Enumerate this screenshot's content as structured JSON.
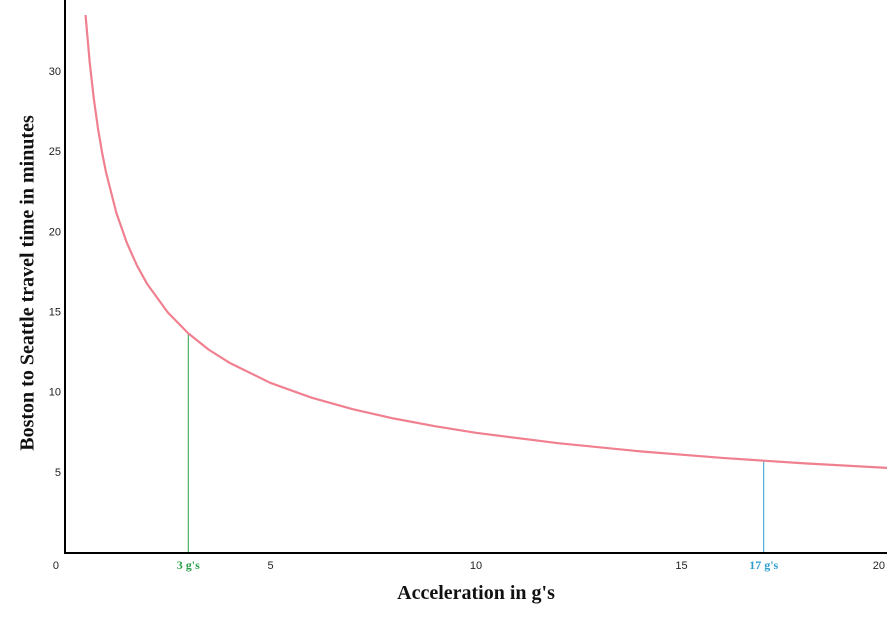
{
  "chart_data": {
    "type": "line",
    "x_label": "Acceleration in g's",
    "y_label": "Boston to Seattle travel time in minutes",
    "x": [
      0.5,
      0.6,
      0.7,
      0.8,
      0.9,
      1,
      1.25,
      1.5,
      1.75,
      2,
      2.5,
      3,
      3.5,
      4,
      5,
      6,
      7,
      8,
      9,
      10,
      12,
      14,
      16,
      17,
      18,
      20
    ],
    "series": [
      {
        "name": "Travel time",
        "color": "#f0808f",
        "values": [
          33.56,
          30.63,
          28.36,
          26.53,
          25.01,
          23.73,
          21.22,
          19.38,
          17.94,
          16.78,
          15.01,
          13.7,
          12.68,
          11.87,
          10.61,
          9.69,
          8.97,
          8.39,
          7.91,
          7.5,
          6.85,
          6.34,
          5.93,
          5.76,
          5.59,
          5.31
        ]
      }
    ],
    "xlim": [
      0,
      20
    ],
    "ylim": [
      0,
      34.5
    ],
    "xticks": [
      0,
      5,
      10,
      15,
      20
    ],
    "yticks": [
      5,
      10,
      15,
      20,
      25,
      30
    ],
    "annotations": [
      {
        "x": 3,
        "y": 13.7,
        "label": "3 g's",
        "color": "#2aa04a"
      },
      {
        "x": 17,
        "y": 5.76,
        "label": "17 g's",
        "color": "#2a9fd0"
      }
    ]
  }
}
